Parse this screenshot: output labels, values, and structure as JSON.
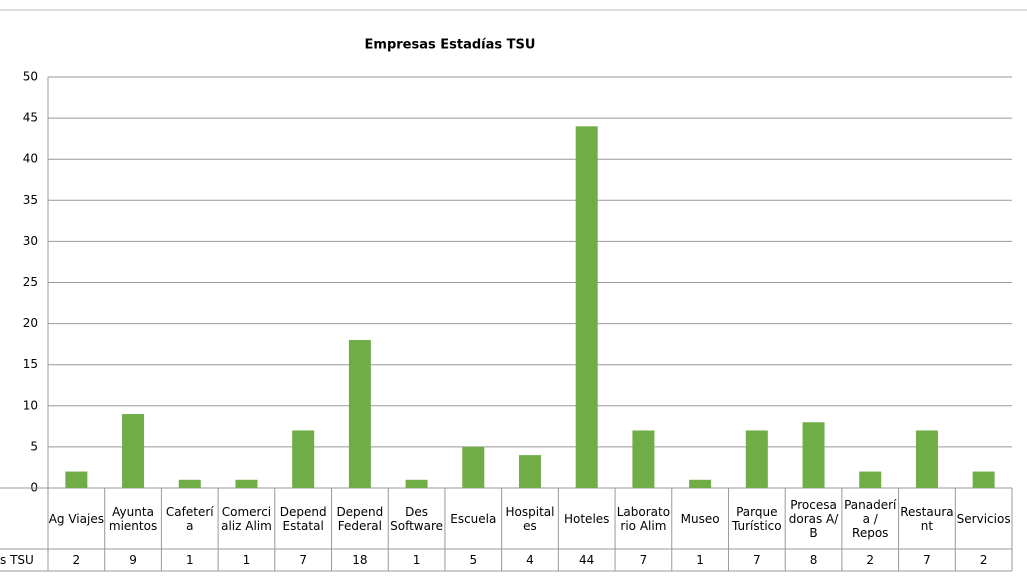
{
  "chart_data": {
    "type": "bar",
    "title": "Empresas Estadías TSU",
    "categories": [
      "Ag Viajes",
      "Ayunta\nmientos",
      "Cafeterí\na",
      "Comerci\naliz Alim",
      "Depend\nEstatal",
      "Depend\nFederal",
      "Des\nSoftware",
      "Escuela",
      "Hospital\nes",
      "Hoteles",
      "Laborato\nrio Alim",
      "Museo",
      "Parque\nTurístico",
      "Procesa\ndoras A/\nB",
      "Panaderí\na /\nRepos",
      "Restaura\nnt",
      "Servicios"
    ],
    "series": [
      {
        "name": "s TSU",
        "color": "#70ad47",
        "values": [
          2,
          9,
          1,
          1,
          7,
          18,
          1,
          5,
          4,
          44,
          7,
          1,
          7,
          8,
          2,
          7,
          2
        ]
      }
    ],
    "ylim": [
      0,
      50
    ],
    "yticks": [
      0,
      5,
      10,
      15,
      20,
      25,
      30,
      35,
      40,
      45,
      50
    ],
    "grid": true
  }
}
